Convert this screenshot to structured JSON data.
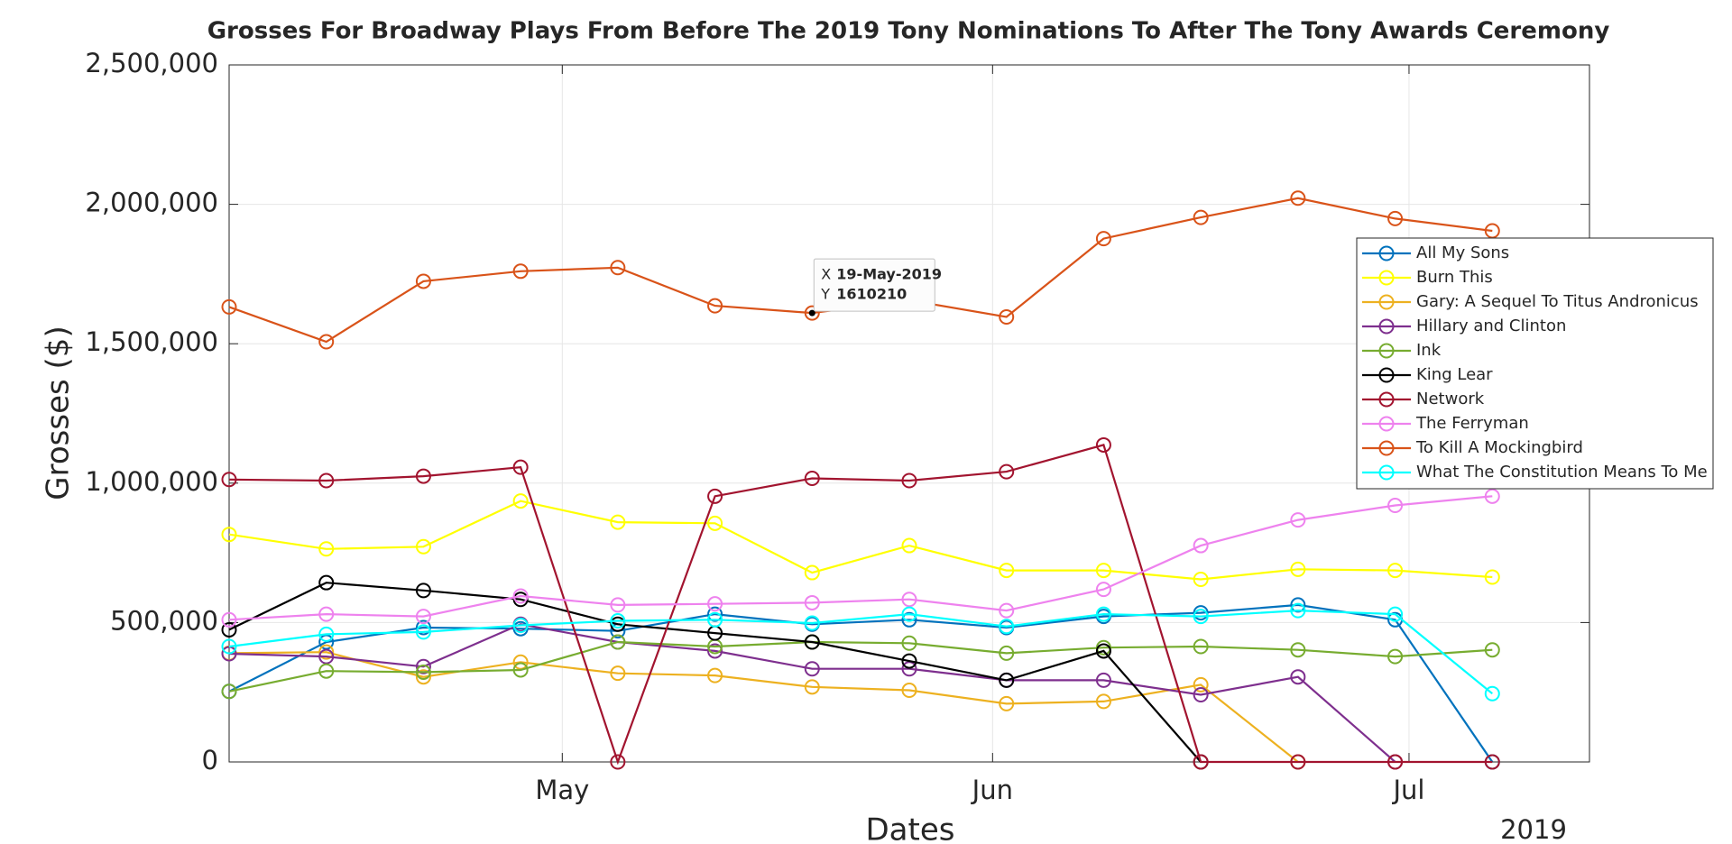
{
  "chart_data": {
    "type": "line",
    "title": "Grosses For Broadway Plays From Before The 2019 Tony Nominations To After The Tony Awards Ceremony",
    "x_label": "Dates",
    "y_label": "Grosses ($)",
    "x_year_label": "2019",
    "x": [
      "2019-04-07",
      "2019-04-14",
      "2019-04-21",
      "2019-04-28",
      "2019-05-05",
      "2019-05-12",
      "2019-05-19",
      "2019-05-26",
      "2019-06-02",
      "2019-06-09",
      "2019-06-16",
      "2019-06-23",
      "2019-06-30",
      "2019-07-07"
    ],
    "xlim": [
      "2019-04-07",
      "2019-07-14"
    ],
    "xticks": [
      {
        "value": "2019-05-01",
        "label": "May"
      },
      {
        "value": "2019-06-01",
        "label": "Jun"
      },
      {
        "value": "2019-07-01",
        "label": "Jul"
      }
    ],
    "ylim": [
      0,
      2500000
    ],
    "yticks": [
      0,
      {
        "value": 500000,
        "label": "500,000"
      },
      {
        "value": 1000000,
        "label": "1,000,000"
      },
      {
        "value": 1500000,
        "label": "1,500,000"
      },
      {
        "value": 2000000,
        "label": "2,000,000"
      },
      {
        "value": 2500000,
        "label": "2,500,000"
      }
    ],
    "grid": true,
    "legend": "east",
    "series": [
      {
        "name": "All My Sons",
        "color": "#0072BD",
        "values": [
          253000,
          430000,
          482000,
          478000,
          470000,
          530000,
          494000,
          510000,
          482000,
          522000,
          535000,
          563000,
          510000,
          0
        ]
      },
      {
        "name": "Burn This",
        "color": "#FFFF00",
        "values": [
          816000,
          764000,
          772000,
          936000,
          860000,
          856000,
          679000,
          776000,
          687000,
          687000,
          655000,
          691000,
          687000,
          663000
        ]
      },
      {
        "name": "Gary: A Sequel To Titus Andronicus",
        "color": "#EDB120",
        "values": [
          390000,
          394000,
          305000,
          358000,
          318000,
          310000,
          269000,
          257000,
          209000,
          217000,
          277000,
          0,
          null,
          null
        ]
      },
      {
        "name": "Hillary and Clinton",
        "color": "#7E2F8E",
        "values": [
          388000,
          378000,
          342000,
          494000,
          430000,
          398000,
          334000,
          334000,
          293000,
          293000,
          241000,
          305000,
          0,
          null
        ]
      },
      {
        "name": "Ink",
        "color": "#77AC30",
        "values": [
          253000,
          326000,
          322000,
          330000,
          430000,
          414000,
          430000,
          426000,
          390000,
          410000,
          414000,
          402000,
          378000,
          402000
        ]
      },
      {
        "name": "King Lear",
        "color": "#000000",
        "values": [
          474000,
          643000,
          615000,
          583000,
          494000,
          462000,
          430000,
          362000,
          293000,
          398000,
          0,
          null,
          null,
          null
        ]
      },
      {
        "name": "Network",
        "color": "#A2142F",
        "values": [
          1013000,
          1009000,
          1025000,
          1057000,
          0,
          953000,
          1017000,
          1009000,
          1041000,
          1137000,
          0,
          0,
          0,
          0
        ]
      },
      {
        "name": "The Ferryman",
        "color": "#EE82EE",
        "values": [
          510000,
          530000,
          522000,
          595000,
          563000,
          567000,
          571000,
          583000,
          543000,
          619000,
          776000,
          868000,
          920000,
          953000
        ]
      },
      {
        "name": "To Kill A Mockingbird",
        "color": "#D95319",
        "values": [
          1632000,
          1507000,
          1724000,
          1760000,
          1773000,
          1636000,
          1610210,
          1656000,
          1596000,
          1877000,
          1953000,
          2022000,
          1949000,
          1905000
        ]
      },
      {
        "name": "What The Constitution Means To Me",
        "color": "#00FFFF",
        "values": [
          414000,
          458000,
          466000,
          490000,
          506000,
          510000,
          498000,
          530000,
          486000,
          530000,
          522000,
          543000,
          530000,
          245000
        ]
      }
    ],
    "datatip": {
      "x_name": "X",
      "y_name": "Y",
      "x": {
        "value": "2019-05-19",
        "label": "19-May-2019"
      },
      "y": 1610210
    }
  }
}
